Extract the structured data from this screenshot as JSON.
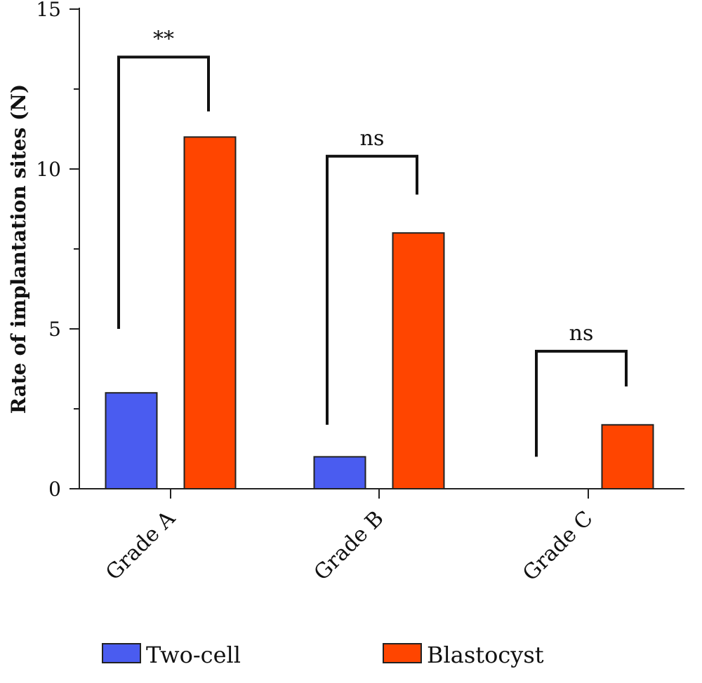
{
  "chart_data": {
    "type": "bar",
    "ylabel": "Rate of implantation sites (N)",
    "ylim": [
      0,
      15
    ],
    "yticks": [
      0,
      5,
      10,
      15
    ],
    "categories": [
      "Grade A",
      "Grade B",
      "Grade C"
    ],
    "series": [
      {
        "name": "Two-cell",
        "color": "#4a5cf0",
        "values": [
          3,
          1,
          0
        ]
      },
      {
        "name": "Blastocyst",
        "color": "#ff4500",
        "values": [
          11,
          8,
          2
        ]
      }
    ],
    "significance": [
      {
        "category": "Grade A",
        "label": "**",
        "top": 13.5,
        "left_end": 5.0,
        "right_end": 11.8
      },
      {
        "category": "Grade B",
        "label": "ns",
        "top": 10.4,
        "left_end": 2.0,
        "right_end": 9.2
      },
      {
        "category": "Grade C",
        "label": "ns",
        "top": 4.3,
        "left_end": 1.0,
        "right_end": 3.2
      }
    ],
    "legend_position": "bottom"
  }
}
